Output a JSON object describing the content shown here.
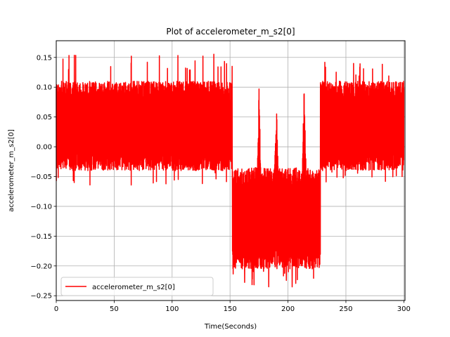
{
  "chart_data": {
    "type": "line",
    "title": "Plot of accelerometer_m_s2[0]",
    "xlabel": "Time(Seconds)",
    "ylabel": "accelerometer_m_s2[0]",
    "xlim": [
      0,
      301
    ],
    "ylim": [
      -0.258,
      0.178
    ],
    "xticks": [
      0,
      50,
      100,
      150,
      200,
      250,
      300
    ],
    "yticks": [
      -0.25,
      -0.2,
      -0.15,
      -0.1,
      -0.05,
      0.0,
      0.05,
      0.1,
      0.15
    ],
    "ytick_labels": [
      "−0.25",
      "−0.20",
      "−0.15",
      "−0.10",
      "−0.05",
      "0.00",
      "0.05",
      "0.10",
      "0.15"
    ],
    "grid": true,
    "legend_position": "lower-left",
    "series": [
      {
        "name": "accelerometer_m_s2[0]",
        "color": "#ff0000",
        "segments": [
          {
            "x": [
              0,
              152
            ],
            "center": 0.035,
            "amplitude": 0.075,
            "peak_max": 0.16,
            "peak_min": -0.065
          },
          {
            "x": [
              152,
              228
            ],
            "center": -0.12,
            "amplitude": 0.085,
            "peak_min": -0.237
          },
          {
            "x": [
              228,
              301
            ],
            "center": 0.035,
            "amplitude": 0.075,
            "peak_max": 0.145,
            "peak_min": -0.06
          }
        ],
        "spikes": [
          {
            "x": 175,
            "y": 0.104
          },
          {
            "x": 190,
            "y": 0.09
          },
          {
            "x": 214,
            "y": 0.115
          }
        ]
      }
    ]
  }
}
